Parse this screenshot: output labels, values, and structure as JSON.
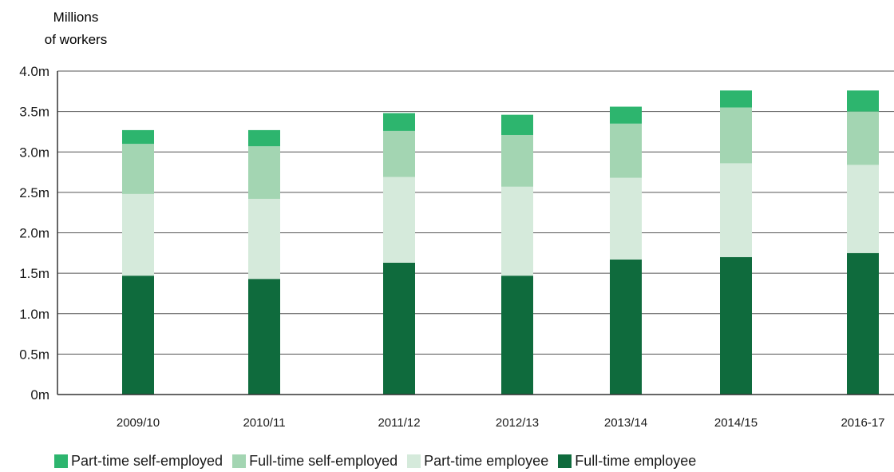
{
  "chart_data": {
    "type": "bar",
    "stacked": true,
    "ylabel_lines": [
      "Millions",
      "of workers"
    ],
    "categories": [
      "2009/10",
      "2010/11",
      "2011/12",
      "2012/13",
      "2013/14",
      "2014/15",
      "2016-17"
    ],
    "ylim": [
      0,
      4.0
    ],
    "yticks": [
      {
        "value": 0,
        "label": "0m"
      },
      {
        "value": 0.5,
        "label": "0.5m"
      },
      {
        "value": 1.0,
        "label": "1.0m"
      },
      {
        "value": 1.5,
        "label": "1.5m"
      },
      {
        "value": 2.0,
        "label": "2.0m"
      },
      {
        "value": 2.5,
        "label": "2.5m"
      },
      {
        "value": 3.0,
        "label": "3.0m"
      },
      {
        "value": 3.5,
        "label": "3.5m"
      },
      {
        "value": 4.0,
        "label": "4.0m"
      }
    ],
    "grid": true,
    "legend_position": "bottom",
    "series": [
      {
        "name": "Full-time employee",
        "color": "#0f6b3d",
        "values": [
          1.47,
          1.43,
          1.63,
          1.47,
          1.67,
          1.7,
          1.75
        ]
      },
      {
        "name": "Part-time employee",
        "color": "#d5eadb",
        "values": [
          1.01,
          0.99,
          1.06,
          1.1,
          1.01,
          1.16,
          1.09
        ]
      },
      {
        "name": "Full-time self-employed",
        "color": "#a3d5b2",
        "values": [
          0.62,
          0.65,
          0.57,
          0.64,
          0.67,
          0.69,
          0.66
        ]
      },
      {
        "name": "Part-time self-employed",
        "color": "#2db56e",
        "values": [
          0.17,
          0.2,
          0.22,
          0.25,
          0.21,
          0.21,
          0.26
        ]
      }
    ],
    "legend_order": [
      "Part-time self-employed",
      "Full-time self-employed",
      "Part-time employee",
      "Full-time employee"
    ]
  }
}
